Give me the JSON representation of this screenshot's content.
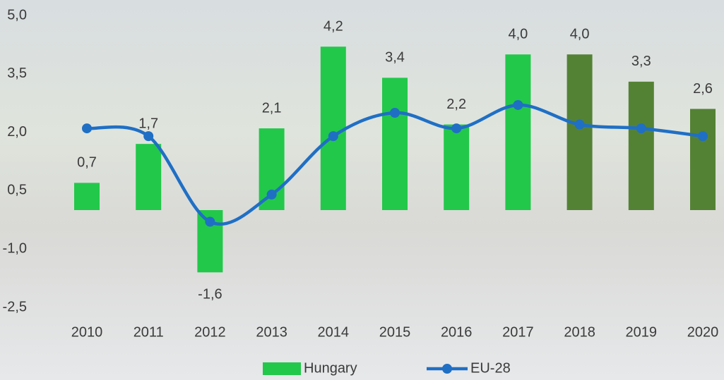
{
  "chart_data": {
    "type": "bar",
    "categories": [
      "2010",
      "2011",
      "2012",
      "2013",
      "2014",
      "2015",
      "2016",
      "2017",
      "2018",
      "2019",
      "2020"
    ],
    "series": [
      {
        "name": "Hungary",
        "type": "bar",
        "color": "#22c84a",
        "colors": [
          "#22c84a",
          "#22c84a",
          "#22c84a",
          "#22c84a",
          "#22c84a",
          "#22c84a",
          "#22c84a",
          "#22c84a",
          "#548235",
          "#548235",
          "#548235"
        ],
        "values": [
          0.7,
          1.7,
          -1.6,
          2.1,
          4.2,
          3.4,
          2.2,
          4.0,
          4.0,
          3.3,
          2.6
        ],
        "value_labels": [
          "0,7",
          "1,7",
          "-1,6",
          "2,1",
          "4,2",
          "3,4",
          "2,2",
          "4,0",
          "4,0",
          "3,3",
          "2,6"
        ]
      },
      {
        "name": "EU-28",
        "type": "line",
        "color": "#1f6fc5",
        "values": [
          2.1,
          1.9,
          -0.3,
          0.4,
          1.9,
          2.5,
          2.1,
          2.7,
          2.2,
          2.1,
          1.9
        ]
      }
    ],
    "ylim": [
      -2.5,
      5.0
    ],
    "yticks": [
      {
        "value": -2.5,
        "label": "-2,5"
      },
      {
        "value": -1.0,
        "label": "-1,0"
      },
      {
        "value": 0.5,
        "label": "0,5"
      },
      {
        "value": 2.0,
        "label": "2,0"
      },
      {
        "value": 3.5,
        "label": "3,5"
      },
      {
        "value": 5.0,
        "label": "5,0"
      }
    ],
    "legend": "bottom"
  }
}
